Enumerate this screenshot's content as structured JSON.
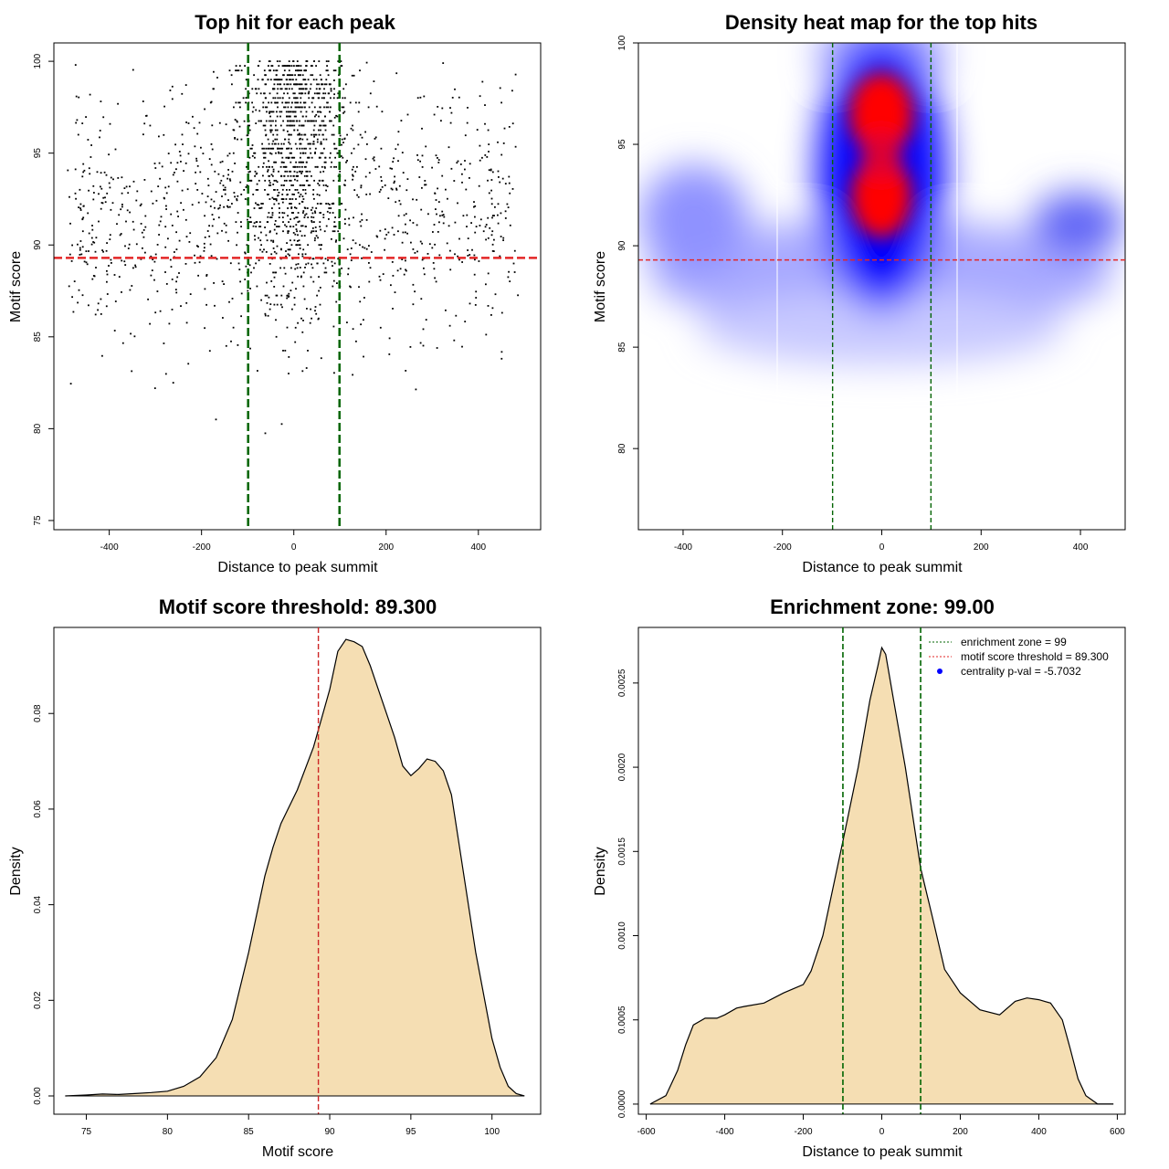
{
  "chart_data": [
    {
      "type": "scatter",
      "title": "Top hit for each peak",
      "xlabel": "Distance to peak summit",
      "ylabel": "Motif score",
      "xlim": [
        -500,
        500
      ],
      "ylim": [
        75,
        100
      ],
      "xticks": [
        -400,
        -200,
        0,
        200,
        400
      ],
      "yticks": [
        75,
        80,
        85,
        90,
        95,
        100
      ],
      "reference_lines": {
        "vertical": [
          -99,
          99
        ],
        "horizontal": [
          89.3
        ]
      },
      "colors": {
        "points": "#000000",
        "vline": "#006400",
        "hline": "#e32626"
      },
      "points_summary": {
        "approx_count": 2000,
        "x_range": [
          -490,
          490
        ],
        "y_range": [
          78,
          100
        ],
        "dense_center_x": 0
      }
    },
    {
      "type": "heatmap",
      "title": "Density heat map for the top hits",
      "xlabel": "Distance to peak summit",
      "ylabel": "Motif score",
      "xlim": [
        -490,
        490
      ],
      "ylim": [
        76,
        100
      ],
      "xticks": [
        -400,
        -200,
        0,
        200,
        400
      ],
      "yticks": [
        80,
        85,
        90,
        95,
        100
      ],
      "reference_lines": {
        "vertical": [
          -99,
          99
        ],
        "horizontal": [
          89.3
        ]
      },
      "colors": {
        "low": "#ffffff",
        "mid": "#0000ff",
        "high": "#ff0000",
        "vline": "#006400",
        "hline": "#e32626"
      },
      "hotspots": [
        {
          "x": 0,
          "y": 96.5,
          "level": "high"
        },
        {
          "x": 0,
          "y": 92,
          "level": "high"
        },
        {
          "x": 400,
          "y": 90.8,
          "level": "mid"
        }
      ]
    },
    {
      "type": "area",
      "title": "Motif score threshold: 89.300",
      "xlabel": "Motif score",
      "ylabel": "Density",
      "xlim": [
        73,
        103
      ],
      "ylim": [
        0,
        0.098
      ],
      "xticks": [
        75,
        80,
        85,
        90,
        95,
        100
      ],
      "yticks": [
        0.0,
        0.02,
        0.04,
        0.06,
        0.08
      ],
      "ytick_labels": [
        "0.00",
        "0.02",
        "0.04",
        "0.06",
        "0.08"
      ],
      "reference_lines": {
        "vertical": [
          89.3
        ]
      },
      "colors": {
        "fill": "#f5deb3",
        "line": "#000000",
        "vline": "#cd2626"
      },
      "x": [
        73.7,
        75,
        76,
        77,
        78,
        79,
        80,
        81,
        82,
        83,
        84,
        85,
        86,
        86.5,
        87,
        88,
        89,
        90,
        90.5,
        91,
        91.5,
        92,
        92.5,
        93,
        93.5,
        94,
        94.5,
        95,
        95.5,
        96,
        96.5,
        97,
        97.5,
        98,
        99,
        100,
        100.5,
        101,
        101.5,
        102
      ],
      "y": [
        0.0,
        0.0002,
        0.0004,
        0.0003,
        0.0005,
        0.0007,
        0.001,
        0.002,
        0.004,
        0.008,
        0.016,
        0.03,
        0.046,
        0.052,
        0.057,
        0.064,
        0.073,
        0.085,
        0.093,
        0.0955,
        0.095,
        0.094,
        0.09,
        0.085,
        0.08,
        0.075,
        0.069,
        0.067,
        0.0685,
        0.0705,
        0.07,
        0.068,
        0.063,
        0.052,
        0.03,
        0.012,
        0.006,
        0.002,
        0.0005,
        0.0
      ]
    },
    {
      "type": "area",
      "title": "Enrichment zone: 99.00",
      "xlabel": "Distance to peak summit",
      "ylabel": "Density",
      "xlim": [
        -620,
        620
      ],
      "ylim": [
        -6e-05,
        0.00283
      ],
      "xticks": [
        -600,
        -400,
        -200,
        0,
        200,
        400,
        600
      ],
      "yticks": [
        0.0,
        0.0005,
        0.001,
        0.0015,
        0.002,
        0.0025
      ],
      "ytick_labels": [
        "0.0000",
        "0.0005",
        "0.0010",
        "0.0015",
        "0.0020",
        "0.0025"
      ],
      "reference_lines": {
        "vertical": [
          -99,
          99
        ]
      },
      "colors": {
        "fill": "#f5deb3",
        "line": "#000000",
        "vline": "#006400"
      },
      "x": [
        -590,
        -550,
        -520,
        -500,
        -480,
        -450,
        -420,
        -400,
        -370,
        -350,
        -300,
        -250,
        -200,
        -180,
        -150,
        -100,
        -60,
        -30,
        -10,
        0,
        10,
        30,
        60,
        99,
        130,
        160,
        200,
        250,
        300,
        340,
        370,
        400,
        430,
        460,
        480,
        500,
        520,
        550,
        590
      ],
      "y": [
        0.0,
        5e-05,
        0.0002,
        0.00035,
        0.00047,
        0.00051,
        0.00051,
        0.00053,
        0.00057,
        0.00058,
        0.0006,
        0.00066,
        0.00071,
        0.00079,
        0.001,
        0.00155,
        0.002,
        0.0024,
        0.0026,
        0.00271,
        0.00267,
        0.0024,
        0.002,
        0.0014,
        0.0011,
        0.0008,
        0.00066,
        0.00056,
        0.00053,
        0.00061,
        0.00063,
        0.00062,
        0.0006,
        0.0005,
        0.00033,
        0.00015,
        5e-05,
        0.0,
        0.0
      ],
      "legend": [
        {
          "label": "enrichment zone = 99",
          "style": "dotted-line",
          "color": "#006400"
        },
        {
          "label": "motif score threshold = 89.300",
          "style": "dotted-line",
          "color": "#e32626"
        },
        {
          "label": "centrality p-val = -5.7032",
          "style": "point",
          "color": "#0000ff"
        }
      ],
      "legend_position": "top-right"
    }
  ]
}
